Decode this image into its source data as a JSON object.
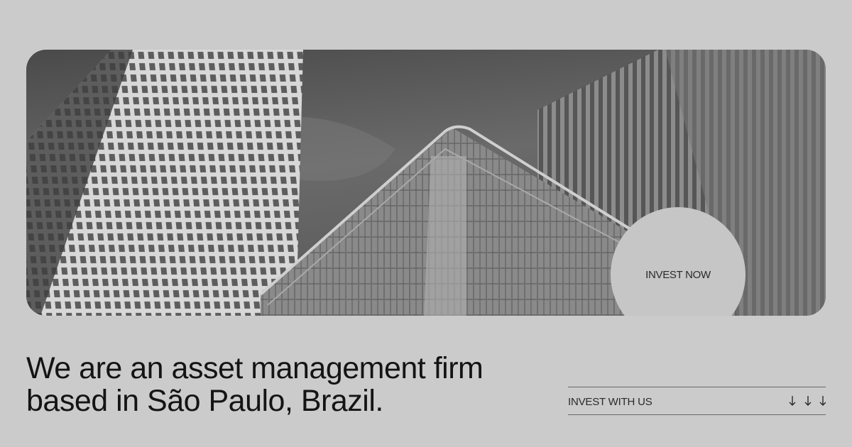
{
  "hero": {
    "button": "INVEST NOW"
  },
  "headline": {
    "lines": [
      "We are an asset management firm",
      "based in São Paulo, Brazil."
    ]
  },
  "cta": {
    "label": "INVEST WITH US"
  }
}
